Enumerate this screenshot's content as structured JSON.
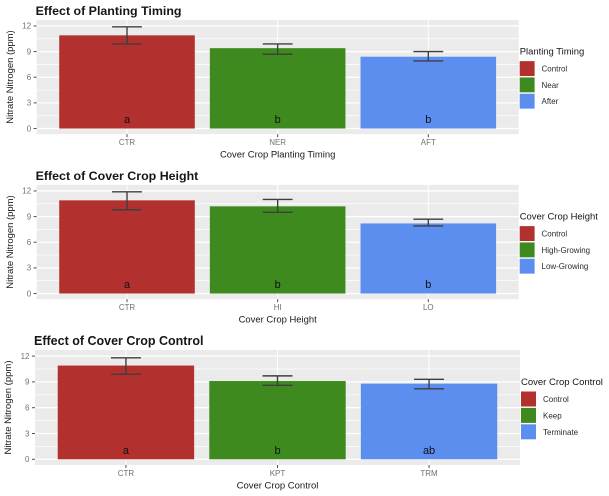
{
  "figure": {
    "background": "#FFFFFF",
    "panel_background": "#EBEBEB",
    "gridline_color": "#FFFFFF",
    "axis_tick_text_color": "#707070",
    "text_color": "#1A1A1A",
    "errorbar_color": "#3F3F3F",
    "bar_palette": {
      "red": "#B2302E",
      "green": "#3E8A1E",
      "blue": "#5C8EF0"
    }
  },
  "chart_data": [
    {
      "type": "bar",
      "title": "Effect of Planting Timing",
      "xlabel": "Cover Crop Planting Timing",
      "ylabel": "Nitrate Nitrogen (ppm)",
      "ylim": [
        0,
        12
      ],
      "yticks": [
        0,
        3,
        6,
        9,
        12
      ],
      "grid": true,
      "legend_position": "right",
      "legend_title": "Planting Timing",
      "categories": [
        "CTR",
        "NER",
        "AFT"
      ],
      "series": [
        {
          "category": "CTR",
          "label": "Control",
          "value": 10.9,
          "error_low": 9.9,
          "error_high": 11.9,
          "sig_letter": "a",
          "color": "#B2302E"
        },
        {
          "category": "NER",
          "label": "Near",
          "value": 9.4,
          "error_low": 8.7,
          "error_high": 9.9,
          "sig_letter": "b",
          "color": "#3E8A1E"
        },
        {
          "category": "AFT",
          "label": "After",
          "value": 8.4,
          "error_low": 7.9,
          "error_high": 9.0,
          "sig_letter": "b",
          "color": "#5C8EF0"
        }
      ]
    },
    {
      "type": "bar",
      "title": "Effect of Cover Crop Height",
      "xlabel": "Cover Crop Height",
      "ylabel": "Nitrate Nitrogen (ppm)",
      "ylim": [
        0,
        12
      ],
      "yticks": [
        0,
        3,
        6,
        9,
        12
      ],
      "grid": true,
      "legend_position": "right",
      "legend_title": "Cover Crop Height",
      "categories": [
        "CTR",
        "HI",
        "LO"
      ],
      "series": [
        {
          "category": "CTR",
          "label": "Control",
          "value": 10.9,
          "error_low": 9.8,
          "error_high": 11.9,
          "sig_letter": "a",
          "color": "#B2302E"
        },
        {
          "category": "HI",
          "label": "High-Growing",
          "value": 10.2,
          "error_low": 9.5,
          "error_high": 11.0,
          "sig_letter": "b",
          "color": "#3E8A1E"
        },
        {
          "category": "LO",
          "label": "Low-Growing",
          "value": 8.2,
          "error_low": 7.9,
          "error_high": 8.7,
          "sig_letter": "b",
          "color": "#5C8EF0"
        }
      ]
    },
    {
      "type": "bar",
      "title": "Effect of Cover Crop Control",
      "xlabel": "Cover Crop Control",
      "ylabel": "Nitrate Nitrogen (ppm)",
      "ylim": [
        0,
        12
      ],
      "yticks": [
        0,
        3,
        6,
        9,
        12
      ],
      "grid": true,
      "legend_position": "right",
      "legend_title": "Cover Crop Control",
      "categories": [
        "CTR",
        "KPT",
        "TRM"
      ],
      "series": [
        {
          "category": "CTR",
          "label": "Control",
          "value": 10.9,
          "error_low": 9.9,
          "error_high": 11.8,
          "sig_letter": "a",
          "color": "#B2302E"
        },
        {
          "category": "KPT",
          "label": "Keep",
          "value": 9.1,
          "error_low": 8.6,
          "error_high": 9.7,
          "sig_letter": "b",
          "color": "#3E8A1E"
        },
        {
          "category": "TRM",
          "label": "Terminate",
          "value": 8.8,
          "error_low": 8.2,
          "error_high": 9.3,
          "sig_letter": "ab",
          "color": "#5C8EF0"
        }
      ]
    }
  ]
}
